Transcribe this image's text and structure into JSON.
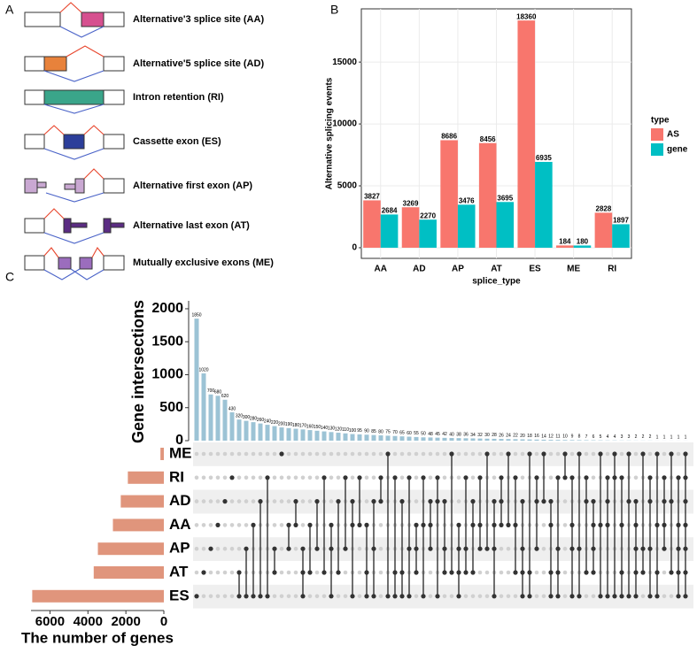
{
  "panel_a": {
    "label": "A",
    "rows": [
      "Alternative'3 splice site (AA)",
      "Alternative'5 splice site (AD)",
      "Intron retention (RI)",
      "Cassette exon (ES)",
      "Alternative first exon (AP)",
      "Alternative last exon (AT)",
      "Mutually exclusive exons (ME)"
    ]
  },
  "chart_data": [
    {
      "type": "bar",
      "panel_label": "B",
      "y_label": "Alternative splicing events",
      "x_label": "splice_type",
      "legend_title": "type",
      "categories": [
        "AA",
        "AD",
        "AP",
        "AT",
        "ES",
        "ME",
        "RI"
      ],
      "series": [
        {
          "name": "AS",
          "color": "#F8766D",
          "values": [
            3827,
            3269,
            8686,
            8456,
            18360,
            184,
            2828
          ]
        },
        {
          "name": "gene",
          "color": "#00BFC4",
          "values": [
            2684,
            2270,
            3476,
            3695,
            6935,
            180,
            1897
          ]
        }
      ],
      "ylim": [
        -860,
        19300
      ],
      "yticks": [
        0,
        5000,
        10000,
        15000
      ],
      "grid": true
    },
    {
      "type": "upset",
      "panel_label": "C",
      "y_label": "Gene intersections",
      "x_label": "The number of genes",
      "sets": [
        "ME",
        "RI",
        "AD",
        "AA",
        "AP",
        "AT",
        "ES"
      ],
      "set_sizes": [
        180,
        1897,
        2270,
        2684,
        3476,
        3695,
        6935
      ],
      "set_color": "#e0957c",
      "xlim": [
        0,
        7000
      ],
      "xticks": [
        6000,
        4000,
        2000,
        0
      ],
      "color": "#9cc3d5",
      "ylim": [
        0,
        2120
      ],
      "yticks": [
        0,
        500,
        1000,
        1500,
        2000
      ],
      "values": [
        1850,
        1020,
        700,
        680,
        620,
        430,
        320,
        300,
        280,
        260,
        240,
        220,
        200,
        190,
        180,
        170,
        160,
        150,
        140,
        130,
        120,
        110,
        100,
        95,
        90,
        85,
        80,
        75,
        70,
        65,
        60,
        55,
        50,
        48,
        45,
        42,
        40,
        38,
        36,
        34,
        32,
        30,
        28,
        26,
        24,
        22,
        20,
        18,
        16,
        14,
        12,
        11,
        10,
        9,
        8,
        7,
        6,
        5,
        4,
        4,
        3,
        3,
        2,
        2,
        2,
        1,
        1,
        1,
        1,
        1
      ],
      "memberships": [
        [
          6
        ],
        [
          5
        ],
        [
          4
        ],
        [
          3
        ],
        [
          2
        ],
        [
          1
        ],
        [
          5,
          6
        ],
        [
          4,
          6
        ],
        [
          3,
          6
        ],
        [
          2,
          6
        ],
        [
          1,
          6
        ],
        [
          4,
          5
        ],
        [
          0
        ],
        [
          3,
          4
        ],
        [
          2,
          3
        ],
        [
          4,
          5,
          6
        ],
        [
          3,
          5
        ],
        [
          2,
          4
        ],
        [
          1,
          5
        ],
        [
          3,
          4,
          6
        ],
        [
          2,
          5
        ],
        [
          1,
          4
        ],
        [
          2,
          3,
          6
        ],
        [
          1,
          3
        ],
        [
          3,
          5,
          6
        ],
        [
          2,
          4,
          6
        ],
        [
          1,
          2
        ],
        [
          0,
          6
        ],
        [
          1,
          5,
          6
        ],
        [
          2,
          5,
          6
        ],
        [
          1,
          4,
          6
        ],
        [
          3,
          4,
          5
        ],
        [
          1,
          3,
          6
        ],
        [
          2,
          3,
          4
        ],
        [
          1,
          2,
          6
        ],
        [
          2,
          4,
          5
        ],
        [
          0,
          5
        ],
        [
          3,
          4,
          5,
          6
        ],
        [
          1,
          4,
          5
        ],
        [
          2,
          3,
          5
        ],
        [
          1,
          3,
          4
        ],
        [
          0,
          4
        ],
        [
          2,
          3,
          4,
          6
        ],
        [
          1,
          2,
          3
        ],
        [
          0,
          3
        ],
        [
          1,
          3,
          5
        ],
        [
          2,
          4,
          5,
          6
        ],
        [
          0,
          5,
          6
        ],
        [
          1,
          2,
          4
        ],
        [
          0,
          2
        ],
        [
          2,
          3,
          5,
          6
        ],
        [
          1,
          4,
          5,
          6
        ],
        [
          0,
          1
        ],
        [
          1,
          3,
          4,
          6
        ],
        [
          0,
          4,
          6
        ],
        [
          1,
          2,
          5
        ],
        [
          2,
          3,
          4,
          5
        ],
        [
          0,
          3,
          6
        ],
        [
          1,
          2,
          3,
          6
        ],
        [
          0,
          1,
          6
        ],
        [
          1,
          3,
          5,
          6
        ],
        [
          0,
          2,
          6
        ],
        [
          2,
          3,
          4,
          5,
          6
        ],
        [
          0,
          4,
          5
        ],
        [
          1,
          2,
          4,
          6
        ],
        [
          0,
          3,
          5,
          6
        ],
        [
          1,
          2,
          3,
          4
        ],
        [
          0,
          2,
          5
        ],
        [
          1,
          3,
          4,
          5,
          6
        ],
        [
          0,
          1,
          2,
          3,
          4,
          5,
          6
        ]
      ]
    }
  ]
}
